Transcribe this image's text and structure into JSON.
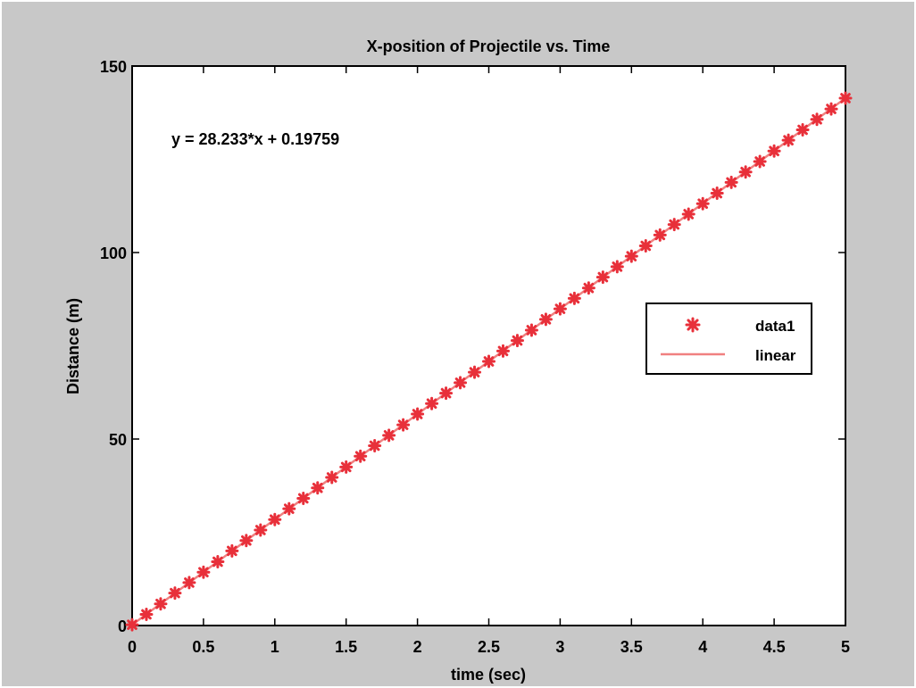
{
  "chart_data": {
    "type": "scatter",
    "title": "X-position of Projectile vs. Time",
    "xlabel": "time (sec)",
    "ylabel": "Distance (m)",
    "xlim": [
      0,
      5
    ],
    "ylim": [
      0,
      150
    ],
    "xticks": [
      "0",
      "0.5",
      "1",
      "1.5",
      "2",
      "2.5",
      "3",
      "3.5",
      "4",
      "4.5",
      "5"
    ],
    "yticks": [
      "0",
      "50",
      "100",
      "150"
    ],
    "annotation": "y = 28.233*x + 0.19759",
    "legend": {
      "position": "right",
      "entries": [
        "data1",
        "linear"
      ]
    },
    "series": [
      {
        "name": "data1",
        "marker": "star",
        "color": "#e8303a",
        "fit_slope": 28.233,
        "fit_intercept": 0.19759,
        "x": [
          0,
          0.1,
          0.2,
          0.3,
          0.4,
          0.5,
          0.6,
          0.7,
          0.8,
          0.9,
          1.0,
          1.1,
          1.2,
          1.3,
          1.4,
          1.5,
          1.6,
          1.7,
          1.8,
          1.9,
          2.0,
          2.1,
          2.2,
          2.3,
          2.4,
          2.5,
          2.6,
          2.7,
          2.8,
          2.9,
          3.0,
          3.1,
          3.2,
          3.3,
          3.4,
          3.5,
          3.6,
          3.7,
          3.8,
          3.9,
          4.0,
          4.1,
          4.2,
          4.3,
          4.4,
          4.5,
          4.6,
          4.7,
          4.8,
          4.9,
          5.0
        ],
        "y": [
          0.2,
          3.0,
          5.8,
          8.7,
          11.5,
          14.3,
          17.1,
          20.0,
          22.8,
          25.6,
          28.4,
          31.3,
          34.1,
          36.9,
          39.7,
          42.5,
          45.4,
          48.2,
          51.0,
          53.8,
          56.7,
          59.5,
          62.3,
          65.1,
          67.9,
          70.8,
          73.6,
          76.4,
          79.2,
          82.1,
          84.9,
          87.7,
          90.5,
          93.4,
          96.2,
          99.0,
          101.8,
          104.7,
          107.5,
          110.3,
          113.1,
          115.9,
          118.8,
          121.6,
          124.4,
          127.2,
          130.1,
          132.9,
          135.7,
          138.5,
          141.4
        ]
      },
      {
        "name": "linear",
        "type": "line",
        "color": "#f08080",
        "x": [
          0,
          5
        ],
        "y": [
          0.2,
          141.4
        ]
      }
    ]
  }
}
